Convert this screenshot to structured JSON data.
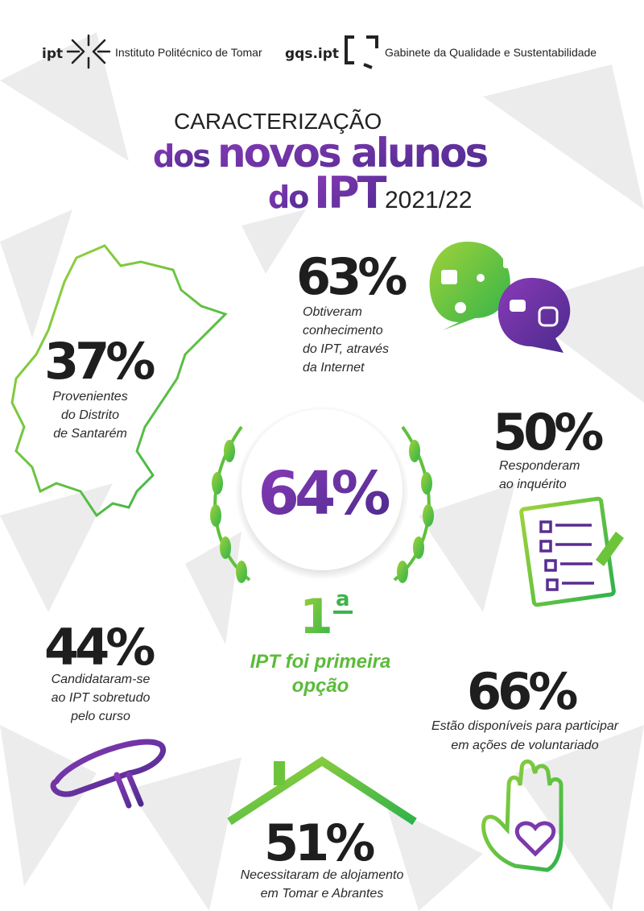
{
  "header": {
    "logo_ipt": "ipt",
    "ipt_name": "Instituto Politécnico de Tomar",
    "logo_gqs": "gqs.ipt",
    "gqs_name": "Gabinete da Qualidade e Sustentabilidade"
  },
  "title": {
    "line1": "CARACTERIZAÇÃO",
    "dos": "dos",
    "novos_alunos": "novos alunos",
    "do": "do",
    "ipt": "IPT",
    "year": "2021/22"
  },
  "stats": [
    {
      "value": "63%",
      "lines": [
        "Obtiveram",
        "conhecimento",
        "do IPT, através",
        "da Internet"
      ]
    },
    {
      "value": "37%",
      "lines": [
        "Provenientes",
        "do Distrito",
        "de Santarém"
      ]
    },
    {
      "value": "50%",
      "lines": [
        "Responderam",
        "ao inquérito"
      ]
    },
    {
      "value": "44%",
      "lines": [
        "Candidataram-se",
        "ao IPT sobretudo",
        "pelo curso"
      ]
    },
    {
      "value": "66%",
      "lines": [
        "Estão disponíveis para participar",
        "em ações de voluntariado"
      ]
    },
    {
      "value": "51%",
      "lines": [
        "Necessitaram de alojamento",
        "em Tomar e Abrantes"
      ]
    }
  ],
  "center": {
    "value": "64%",
    "ordinal": "1",
    "ordinal_suffix": "a",
    "lines": [
      "IPT foi primeira",
      "opção"
    ]
  }
}
